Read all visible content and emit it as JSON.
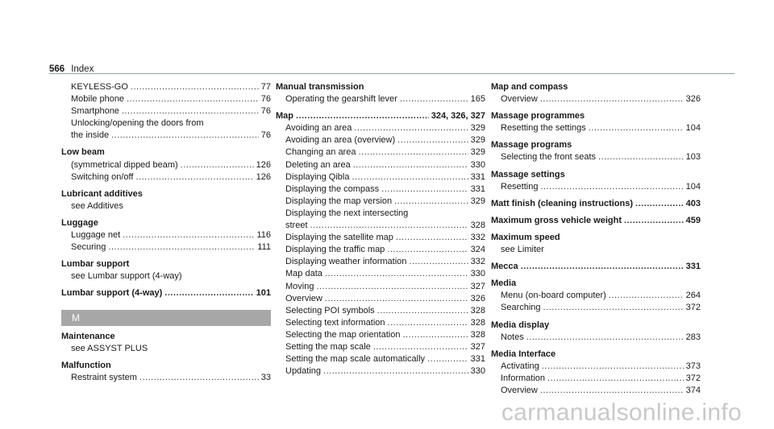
{
  "header": {
    "page_number": "566",
    "title": "Index"
  },
  "col1": [
    {
      "t": "s",
      "text": "KEYLESS-GO",
      "page": "77"
    },
    {
      "t": "s",
      "text": "Mobile phone",
      "page": "76"
    },
    {
      "t": "s",
      "text": "Smartphone",
      "page": "76"
    },
    {
      "t": "s",
      "text": "Unlocking/opening the doors from",
      "page": ""
    },
    {
      "t": "s",
      "text": "the inside",
      "page": "76"
    },
    {
      "t": "m",
      "text": "Low beam",
      "page": ""
    },
    {
      "t": "s",
      "text": "(symmetrical dipped beam)",
      "page": "126"
    },
    {
      "t": "s",
      "text": "Switching on/off",
      "page": "126"
    },
    {
      "t": "m",
      "text": "Lubricant additives",
      "page": ""
    },
    {
      "t": "s",
      "text": "see Additives",
      "page": ""
    },
    {
      "t": "m",
      "text": "Luggage",
      "page": ""
    },
    {
      "t": "s",
      "text": "Luggage net",
      "page": "116"
    },
    {
      "t": "s",
      "text": "Securing",
      "page": "111"
    },
    {
      "t": "m",
      "text": "Lumbar support",
      "page": ""
    },
    {
      "t": "s",
      "text": "see Lumbar support (4-way)",
      "page": ""
    },
    {
      "t": "m",
      "text": "Lumbar support (4-way)",
      "page": "101"
    },
    {
      "t": "h",
      "text": "M"
    },
    {
      "t": "m",
      "text": "Maintenance",
      "page": ""
    },
    {
      "t": "s",
      "text": "see ASSYST PLUS",
      "page": ""
    },
    {
      "t": "m",
      "text": "Malfunction",
      "page": ""
    },
    {
      "t": "s",
      "text": "Restraint system",
      "page": "33"
    }
  ],
  "col2": [
    {
      "t": "m",
      "text": "Manual transmission",
      "page": ""
    },
    {
      "t": "s",
      "text": "Operating the gearshift lever",
      "page": "165"
    },
    {
      "t": "m",
      "text": "Map",
      "page": "324, 326, 327"
    },
    {
      "t": "s",
      "text": "Avoiding an area",
      "page": "329"
    },
    {
      "t": "s",
      "text": "Avoiding an area (overview)",
      "page": "329"
    },
    {
      "t": "s",
      "text": "Changing an area",
      "page": "329"
    },
    {
      "t": "s",
      "text": "Deleting an area",
      "page": "330"
    },
    {
      "t": "s",
      "text": "Displaying Qibla",
      "page": "331"
    },
    {
      "t": "s",
      "text": "Displaying the compass",
      "page": "331"
    },
    {
      "t": "s",
      "text": "Displaying the map version",
      "page": "329"
    },
    {
      "t": "s",
      "text": "Displaying the next intersecting",
      "page": ""
    },
    {
      "t": "s",
      "text": "street",
      "page": "328"
    },
    {
      "t": "s",
      "text": "Displaying the satellite map",
      "page": "332"
    },
    {
      "t": "s",
      "text": "Displaying the traffic map",
      "page": "324"
    },
    {
      "t": "s",
      "text": "Displaying weather information",
      "page": "332"
    },
    {
      "t": "s",
      "text": "Map data",
      "page": "330"
    },
    {
      "t": "s",
      "text": "Moving",
      "page": "327"
    },
    {
      "t": "s",
      "text": "Overview",
      "page": "326"
    },
    {
      "t": "s",
      "text": "Selecting POI symbols",
      "page": "328"
    },
    {
      "t": "s",
      "text": "Selecting text information",
      "page": "328"
    },
    {
      "t": "s",
      "text": "Selecting the map orientation",
      "page": "328"
    },
    {
      "t": "s",
      "text": "Setting the map scale",
      "page": "327"
    },
    {
      "t": "s",
      "text": "Setting the map scale automatically",
      "page": "331"
    },
    {
      "t": "s",
      "text": "Updating",
      "page": "330"
    }
  ],
  "col3": [
    {
      "t": "m",
      "text": "Map and compass",
      "page": ""
    },
    {
      "t": "s",
      "text": "Overview",
      "page": "326"
    },
    {
      "t": "m",
      "text": "Massage programmes",
      "page": ""
    },
    {
      "t": "s",
      "text": "Resetting the settings",
      "page": "104"
    },
    {
      "t": "m",
      "text": "Massage programs",
      "page": ""
    },
    {
      "t": "s",
      "text": "Selecting the front seats",
      "page": "103"
    },
    {
      "t": "m",
      "text": "Massage settings",
      "page": ""
    },
    {
      "t": "s",
      "text": "Resetting",
      "page": "104"
    },
    {
      "t": "m",
      "text": "Matt finish (cleaning instructions)",
      "page": "403"
    },
    {
      "t": "m",
      "text": "Maximum gross vehicle weight",
      "page": "459"
    },
    {
      "t": "m",
      "text": "Maximum speed",
      "page": ""
    },
    {
      "t": "s",
      "text": "see Limiter",
      "page": ""
    },
    {
      "t": "m",
      "text": "Mecca",
      "page": "331"
    },
    {
      "t": "m",
      "text": "Media",
      "page": ""
    },
    {
      "t": "s",
      "text": "Menu (on-board computer)",
      "page": "264"
    },
    {
      "t": "s",
      "text": "Searching",
      "page": "372"
    },
    {
      "t": "m",
      "text": "Media display",
      "page": ""
    },
    {
      "t": "s",
      "text": "Notes",
      "page": "283"
    },
    {
      "t": "m",
      "text": "Media Interface",
      "page": ""
    },
    {
      "t": "s",
      "text": "Activating",
      "page": "373"
    },
    {
      "t": "s",
      "text": "Information",
      "page": "372"
    },
    {
      "t": "s",
      "text": "Overview",
      "page": "374"
    }
  ],
  "watermark": "carmanualsonline.info"
}
